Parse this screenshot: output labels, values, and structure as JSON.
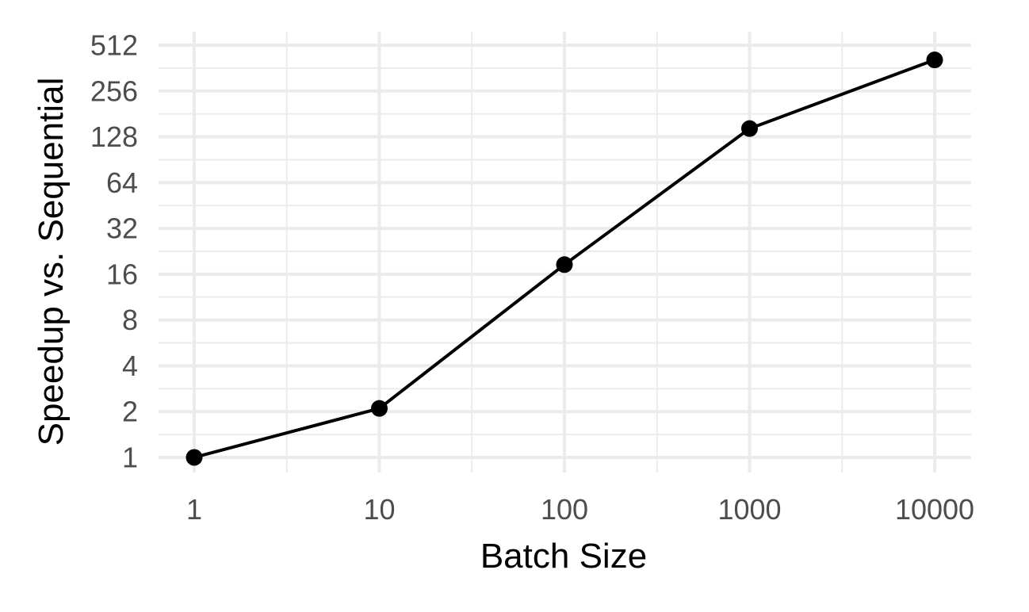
{
  "chart_data": {
    "type": "line",
    "title": "",
    "xlabel": "Batch Size",
    "ylabel": "Speedup vs. Sequential",
    "x_scale": "log10",
    "y_scale": "log2",
    "xlim": [
      1,
      10000
    ],
    "ylim": [
      1,
      512
    ],
    "x_ticks": [
      1,
      10,
      100,
      1000,
      10000
    ],
    "x_tick_labels": [
      "1",
      "10",
      "100",
      "1000",
      "10000"
    ],
    "y_ticks": [
      1,
      2,
      4,
      8,
      16,
      32,
      64,
      128,
      256,
      512
    ],
    "y_tick_labels": [
      "1",
      "2",
      "4",
      "8",
      "16",
      "32",
      "64",
      "128",
      "256",
      "512"
    ],
    "grid": true,
    "legend": "none",
    "series": [
      {
        "x": [
          1,
          10,
          100,
          1000,
          10000
        ],
        "y": [
          1,
          2.1,
          18.5,
          145,
          410
        ]
      }
    ],
    "colors": {
      "line": "#000000",
      "grid": "#ebebeb",
      "tick_text": "#4d4d4d",
      "title_text": "#000000"
    }
  }
}
